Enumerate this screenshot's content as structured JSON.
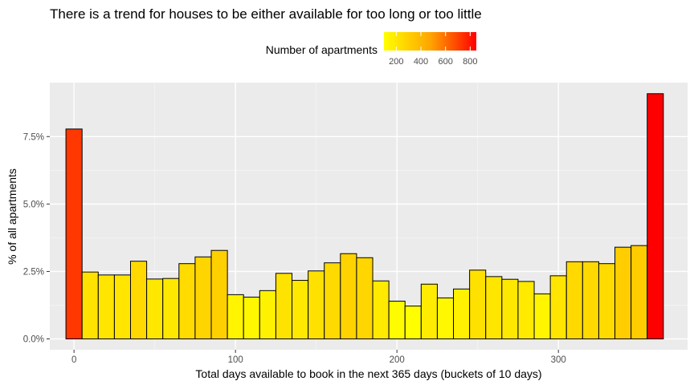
{
  "chart_data": {
    "type": "bar",
    "title": "There is a trend for houses to be either available for too long or too little",
    "xlabel": "Total days available to book in the next 365 days (buckets of 10 days)",
    "ylabel": "% of all apartments",
    "x_ticks": [
      0,
      100,
      200,
      300
    ],
    "xlim": [
      -15,
      380
    ],
    "y_ticks": [
      0,
      2.5,
      5.0,
      7.5
    ],
    "y_tick_labels": [
      "0.0%",
      "2.5%",
      "5.0%",
      "7.5%"
    ],
    "ylim": [
      -0.4,
      9.5
    ],
    "bin_width": 10,
    "x": [
      0,
      10,
      20,
      30,
      40,
      50,
      60,
      70,
      80,
      90,
      100,
      110,
      120,
      130,
      140,
      150,
      160,
      170,
      180,
      190,
      200,
      210,
      220,
      230,
      240,
      250,
      260,
      270,
      280,
      290,
      300,
      310,
      320,
      330,
      340,
      350,
      360
    ],
    "values": [
      7.78,
      2.48,
      2.37,
      2.37,
      2.88,
      2.22,
      2.24,
      2.79,
      3.04,
      3.28,
      1.64,
      1.55,
      1.79,
      2.43,
      2.17,
      2.52,
      2.82,
      3.16,
      3.01,
      2.15,
      1.4,
      1.22,
      2.03,
      1.52,
      1.85,
      2.55,
      2.31,
      2.21,
      2.13,
      1.67,
      2.34,
      2.86,
      2.86,
      2.79,
      3.4,
      3.46,
      9.09
    ],
    "grid": true,
    "background": "#ebebeb",
    "legend": {
      "title": "Number of apartments",
      "placement": "top",
      "type": "colorbar",
      "range": [
        100,
        850
      ],
      "ticks": [
        200,
        400,
        600,
        800
      ],
      "colors": [
        "#ffff00",
        "#ff0000"
      ]
    }
  }
}
